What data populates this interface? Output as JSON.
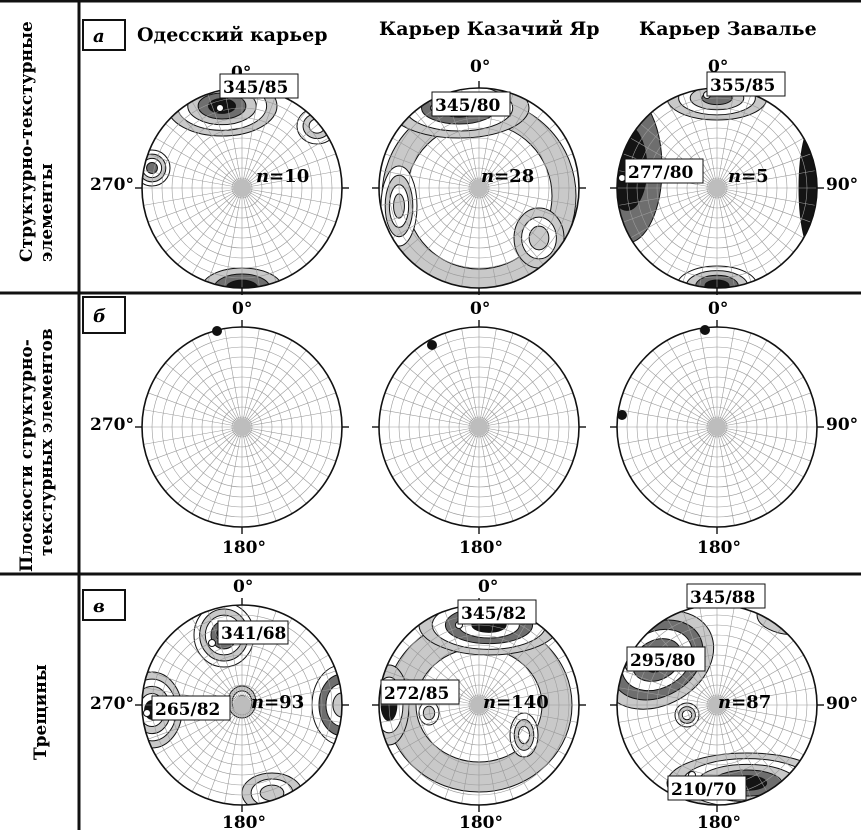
{
  "rows": [
    {
      "letter": "а",
      "label_lines": [
        "Структурно-текстурные",
        "элементы"
      ]
    },
    {
      "letter": "б",
      "label_lines": [
        "Плоскости структурно-",
        "текстурных элементов"
      ]
    },
    {
      "letter": "в",
      "label_lines": [
        "Трещины"
      ]
    }
  ],
  "columns": [
    "Одесский карьер",
    "Карьер Казачий Яр",
    "Карьер Завалье"
  ],
  "directions": {
    "north": "0°",
    "east": "90°",
    "south": "180°",
    "west": "270°"
  },
  "row_a": {
    "peaks": [
      "345/85",
      "345/80",
      "355/85"
    ],
    "extra_peak": "277/80",
    "n_values": [
      "=10",
      "=28",
      "=5"
    ]
  },
  "row_c": {
    "peaks": [
      "341/68",
      "345/82",
      "345/88"
    ],
    "left_peaks": [
      "265/82",
      "272/85",
      "295/80"
    ],
    "extra_peak": "210/70",
    "n_values": [
      "=93",
      "=140",
      "=87"
    ]
  },
  "n_symbol": "n",
  "colors": {
    "line": "#111111",
    "dark": "#141414",
    "mid": "#6e6e6e",
    "light": "#c9c9c9"
  }
}
